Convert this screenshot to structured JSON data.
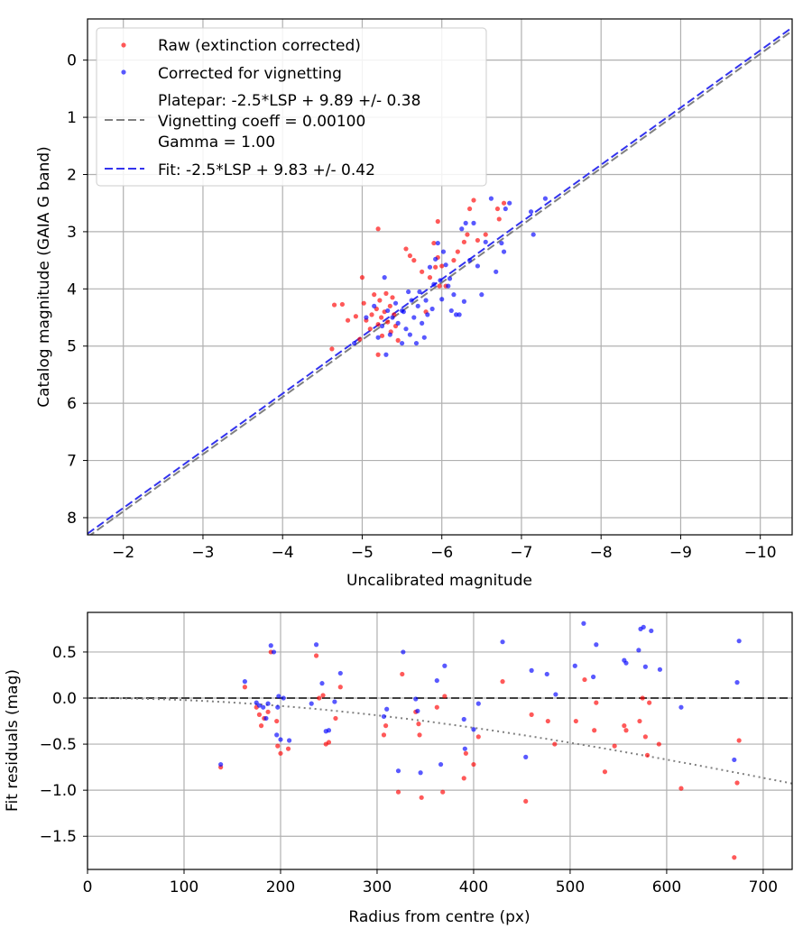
{
  "chart_data": [
    {
      "type": "scatter",
      "xlabel": "Uncalibrated magnitude",
      "ylabel": "Catalog magnitude (GAIA G band)",
      "xlim": [
        -1.55,
        -10.4
      ],
      "ylim": [
        8.3,
        -0.72
      ],
      "xticks": [
        -2,
        -3,
        -4,
        -5,
        -6,
        -7,
        -8,
        -9,
        -10
      ],
      "xtick_labels": [
        "−2",
        "−3",
        "−4",
        "−5",
        "−6",
        "−7",
        "−8",
        "−9",
        "−10"
      ],
      "yticks": [
        0,
        1,
        2,
        3,
        4,
        5,
        6,
        7,
        8
      ],
      "ytick_labels": [
        "0",
        "1",
        "2",
        "3",
        "4",
        "5",
        "6",
        "7",
        "8"
      ],
      "grid": true,
      "legend_location": "top-left",
      "legend": [
        "Raw (extinction corrected)",
        "Corrected for vignetting",
        "Platepar: -2.5*LSP + 9.89 +/- 0.38",
        "Vignetting coeff = 0.00100",
        "Gamma = 1.00",
        "Fit: -2.5*LSP + 9.83 +/- 0.42"
      ],
      "colors": {
        "raw": "#ff0000",
        "corrected": "#0000ff",
        "platepar": "#808080",
        "fit": "#3333ee"
      },
      "lines": [
        {
          "name": "Platepar",
          "slope": -2.5,
          "intercept": 9.89
        },
        {
          "name": "Fit",
          "slope": -2.5,
          "intercept": 9.83
        }
      ],
      "series": [
        {
          "name": "Raw (extinction corrected)",
          "points": [
            [
              -4.62,
              5.05
            ],
            [
              -4.65,
              4.28
            ],
            [
              -4.75,
              4.27
            ],
            [
              -4.82,
              4.55
            ],
            [
              -4.92,
              4.48
            ],
            [
              -4.97,
              4.88
            ],
            [
              -5.0,
              3.8
            ],
            [
              -5.02,
              4.25
            ],
            [
              -5.05,
              4.55
            ],
            [
              -5.1,
              4.7
            ],
            [
              -5.12,
              4.45
            ],
            [
              -5.15,
              4.1
            ],
            [
              -5.18,
              4.35
            ],
            [
              -5.2,
              4.62
            ],
            [
              -5.22,
              4.2
            ],
            [
              -5.24,
              4.5
            ],
            [
              -5.25,
              4.82
            ],
            [
              -5.28,
              4.4
            ],
            [
              -5.3,
              4.08
            ],
            [
              -5.32,
              4.58
            ],
            [
              -5.35,
              4.3
            ],
            [
              -5.36,
              4.75
            ],
            [
              -5.38,
              4.15
            ],
            [
              -5.4,
              4.45
            ],
            [
              -5.42,
              4.65
            ],
            [
              -5.45,
              4.9
            ],
            [
              -5.2,
              2.95
            ],
            [
              -5.2,
              5.15
            ],
            [
              -5.55,
              3.3
            ],
            [
              -5.6,
              3.42
            ],
            [
              -5.65,
              3.5
            ],
            [
              -5.75,
              3.7
            ],
            [
              -5.8,
              4.4
            ],
            [
              -5.85,
              3.8
            ],
            [
              -5.9,
              3.2
            ],
            [
              -5.92,
              3.62
            ],
            [
              -5.95,
              3.45
            ],
            [
              -5.95,
              2.82
            ],
            [
              -5.97,
              3.95
            ],
            [
              -6.0,
              3.6
            ],
            [
              -6.05,
              3.95
            ],
            [
              -6.15,
              3.5
            ],
            [
              -6.2,
              3.35
            ],
            [
              -6.28,
              3.18
            ],
            [
              -6.32,
              3.05
            ],
            [
              -6.35,
              2.6
            ],
            [
              -6.4,
              2.45
            ],
            [
              -6.45,
              3.15
            ],
            [
              -6.55,
              3.05
            ],
            [
              -6.7,
              2.6
            ],
            [
              -6.72,
              2.78
            ],
            [
              -6.78,
              2.5
            ]
          ]
        },
        {
          "name": "Corrected for vignetting",
          "points": [
            [
              -4.9,
              4.95
            ],
            [
              -5.05,
              4.5
            ],
            [
              -5.15,
              4.3
            ],
            [
              -5.2,
              4.85
            ],
            [
              -5.25,
              4.65
            ],
            [
              -5.28,
              3.8
            ],
            [
              -5.3,
              5.15
            ],
            [
              -5.32,
              4.38
            ],
            [
              -5.35,
              4.8
            ],
            [
              -5.38,
              4.5
            ],
            [
              -5.42,
              4.25
            ],
            [
              -5.45,
              4.6
            ],
            [
              -5.5,
              4.95
            ],
            [
              -5.52,
              4.4
            ],
            [
              -5.55,
              4.7
            ],
            [
              -5.58,
              4.05
            ],
            [
              -5.6,
              4.8
            ],
            [
              -5.62,
              4.2
            ],
            [
              -5.65,
              4.5
            ],
            [
              -5.68,
              4.95
            ],
            [
              -5.7,
              4.3
            ],
            [
              -5.72,
              4.05
            ],
            [
              -5.75,
              4.6
            ],
            [
              -5.78,
              4.85
            ],
            [
              -5.8,
              4.2
            ],
            [
              -5.82,
              4.45
            ],
            [
              -5.85,
              3.62
            ],
            [
              -5.88,
              4.35
            ],
            [
              -5.9,
              3.92
            ],
            [
              -5.92,
              3.48
            ],
            [
              -5.95,
              3.2
            ],
            [
              -5.98,
              3.85
            ],
            [
              -6.0,
              4.18
            ],
            [
              -6.02,
              3.35
            ],
            [
              -6.05,
              3.58
            ],
            [
              -6.08,
              3.95
            ],
            [
              -6.1,
              3.82
            ],
            [
              -6.12,
              4.38
            ],
            [
              -6.15,
              4.1
            ],
            [
              -6.18,
              4.45
            ],
            [
              -6.22,
              4.45
            ],
            [
              -6.25,
              2.95
            ],
            [
              -6.3,
              2.85
            ],
            [
              -6.35,
              3.5
            ],
            [
              -6.4,
              2.85
            ],
            [
              -6.5,
              4.1
            ],
            [
              -6.55,
              3.18
            ],
            [
              -6.62,
              2.42
            ],
            [
              -6.68,
              3.7
            ],
            [
              -6.75,
              3.2
            ],
            [
              -6.8,
              2.6
            ],
            [
              -6.85,
              2.5
            ],
            [
              -7.12,
              2.65
            ],
            [
              -7.15,
              3.05
            ],
            [
              -7.3,
              2.42
            ],
            [
              -6.78,
              3.35
            ],
            [
              -6.45,
              3.6
            ],
            [
              -5.5,
              4.38
            ],
            [
              -6.28,
              4.22
            ]
          ]
        }
      ]
    },
    {
      "type": "scatter",
      "xlabel": "Radius from centre (px)",
      "ylabel": "Fit residuals (mag)",
      "xlim": [
        0,
        730
      ],
      "ylim": [
        -1.86,
        0.93
      ],
      "xticks": [
        0,
        100,
        200,
        300,
        400,
        500,
        600,
        700
      ],
      "xtick_labels": [
        "0",
        "100",
        "200",
        "300",
        "400",
        "500",
        "600",
        "700"
      ],
      "yticks": [
        -1.5,
        -1.0,
        -0.5,
        0.0,
        0.5
      ],
      "ytick_labels": [
        "−1.5",
        "−1.0",
        "−0.5",
        "0.0",
        "0.5"
      ],
      "grid": true,
      "reference_line": {
        "name": "zero",
        "value": 0.0
      },
      "vignetting_coeff": 0.001,
      "gamma": 1.0,
      "series": [
        {
          "name": "Raw (extinction corrected)",
          "points": [
            [
              138,
              -0.75
            ],
            [
              163,
              0.12
            ],
            [
              175,
              -0.1
            ],
            [
              178,
              -0.18
            ],
            [
              180,
              -0.3
            ],
            [
              183,
              -0.22
            ],
            [
              187,
              -0.15
            ],
            [
              190,
              0.5
            ],
            [
              196,
              -0.25
            ],
            [
              197,
              -0.52
            ],
            [
              200,
              -0.6
            ],
            [
              208,
              -0.55
            ],
            [
              237,
              0.46
            ],
            [
              240,
              0.0
            ],
            [
              244,
              0.03
            ],
            [
              247,
              -0.5
            ],
            [
              250,
              -0.48
            ],
            [
              257,
              -0.22
            ],
            [
              262,
              0.12
            ],
            [
              307,
              -0.4
            ],
            [
              309,
              -0.3
            ],
            [
              322,
              -1.02
            ],
            [
              326,
              0.26
            ],
            [
              340,
              -0.15
            ],
            [
              343,
              -0.28
            ],
            [
              344,
              -0.4
            ],
            [
              346,
              -1.08
            ],
            [
              362,
              -0.1
            ],
            [
              368,
              -1.02
            ],
            [
              370,
              0.02
            ],
            [
              390,
              -0.87
            ],
            [
              392,
              -0.6
            ],
            [
              400,
              -0.72
            ],
            [
              405,
              -0.42
            ],
            [
              430,
              0.18
            ],
            [
              454,
              -1.12
            ],
            [
              460,
              -0.18
            ],
            [
              477,
              -0.25
            ],
            [
              484,
              -0.5
            ],
            [
              506,
              -0.25
            ],
            [
              515,
              0.2
            ],
            [
              525,
              -0.35
            ],
            [
              527,
              -0.05
            ],
            [
              536,
              -0.8
            ],
            [
              546,
              -0.52
            ],
            [
              556,
              -0.3
            ],
            [
              558,
              -0.35
            ],
            [
              572,
              -0.25
            ],
            [
              575,
              0.0
            ],
            [
              578,
              -0.42
            ],
            [
              580,
              -0.62
            ],
            [
              582,
              -0.05
            ],
            [
              592,
              -0.5
            ],
            [
              615,
              -0.98
            ],
            [
              670,
              -1.73
            ],
            [
              673,
              -0.92
            ],
            [
              675,
              -0.46
            ]
          ]
        },
        {
          "name": "Corrected for vignetting",
          "points": [
            [
              138,
              -0.72
            ],
            [
              163,
              0.18
            ],
            [
              175,
              -0.05
            ],
            [
              178,
              -0.08
            ],
            [
              182,
              -0.1
            ],
            [
              185,
              -0.22
            ],
            [
              187,
              -0.06
            ],
            [
              190,
              0.57
            ],
            [
              193,
              0.5
            ],
            [
              196,
              -0.4
            ],
            [
              197,
              -0.1
            ],
            [
              198,
              0.02
            ],
            [
              200,
              -0.45
            ],
            [
              203,
              0.0
            ],
            [
              209,
              -0.46
            ],
            [
              232,
              -0.06
            ],
            [
              237,
              0.58
            ],
            [
              243,
              0.16
            ],
            [
              247,
              -0.36
            ],
            [
              250,
              -0.35
            ],
            [
              256,
              -0.04
            ],
            [
              262,
              0.27
            ],
            [
              307,
              -0.2
            ],
            [
              310,
              -0.12
            ],
            [
              322,
              -0.79
            ],
            [
              327,
              0.5
            ],
            [
              340,
              -0.01
            ],
            [
              342,
              -0.14
            ],
            [
              345,
              -0.81
            ],
            [
              362,
              0.19
            ],
            [
              366,
              -0.72
            ],
            [
              370,
              0.35
            ],
            [
              390,
              -0.23
            ],
            [
              391,
              -0.55
            ],
            [
              400,
              -0.34
            ],
            [
              405,
              -0.06
            ],
            [
              430,
              0.61
            ],
            [
              454,
              -0.64
            ],
            [
              460,
              0.3
            ],
            [
              476,
              0.26
            ],
            [
              485,
              0.04
            ],
            [
              505,
              0.35
            ],
            [
              514,
              0.81
            ],
            [
              524,
              0.23
            ],
            [
              527,
              0.58
            ],
            [
              556,
              0.41
            ],
            [
              558,
              0.38
            ],
            [
              571,
              0.52
            ],
            [
              573,
              0.75
            ],
            [
              576,
              0.77
            ],
            [
              578,
              0.34
            ],
            [
              584,
              0.73
            ],
            [
              593,
              0.31
            ],
            [
              615,
              -0.1
            ],
            [
              670,
              -0.67
            ],
            [
              673,
              0.17
            ],
            [
              675,
              0.62
            ]
          ]
        }
      ]
    }
  ]
}
